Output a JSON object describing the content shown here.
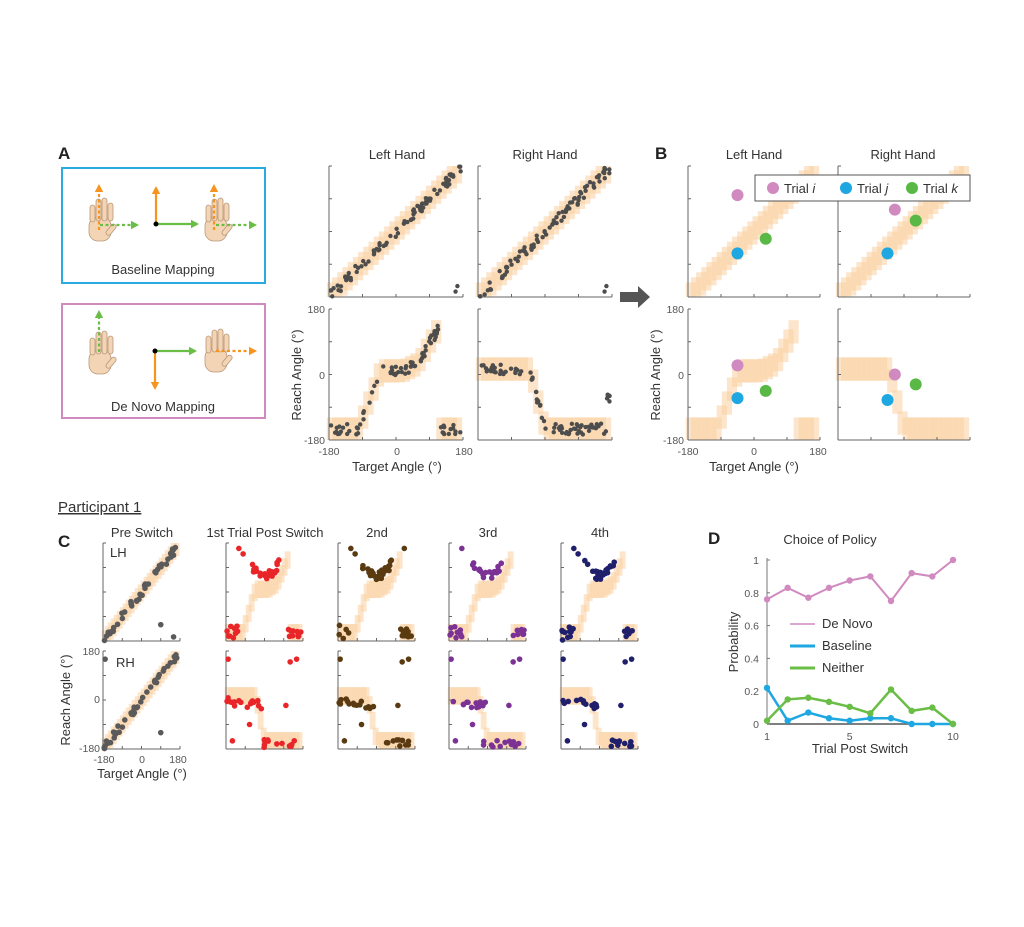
{
  "panel_a": {
    "letter": "A",
    "baseline_label": "Baseline Mapping",
    "denovo_label": "De Novo Mapping",
    "col_titles": [
      "Left Hand",
      "Right Hand"
    ],
    "ylabel": "Reach Angle (°)",
    "xlabel": "Target Angle (°)",
    "ticks": [
      "-180",
      "0",
      "180"
    ],
    "colors": {
      "baseline_box": "#29abe2",
      "denovo_box": "#d08ac0",
      "orange_arrow": "#f7941d",
      "green_arrow": "#6abd45",
      "hand": "#f3d5b5"
    }
  },
  "panel_b": {
    "letter": "B",
    "col_titles": [
      "Left Hand",
      "Right Hand"
    ],
    "ylabel": "Reach Angle (°)",
    "xlabel": "Target Angle (°)",
    "ticks": [
      "-180",
      "0",
      "180"
    ],
    "legend": [
      {
        "label": "Trial ",
        "var": "i",
        "color": "#d08ac0"
      },
      {
        "label": "Trial ",
        "var": "j",
        "color": "#1ea7e1"
      },
      {
        "label": "Trial ",
        "var": "k",
        "color": "#5ab946"
      }
    ],
    "trials": {
      "top_left": [
        {
          "t": -45,
          "r": 100,
          "k": 0
        },
        {
          "t": -45,
          "r": -60,
          "k": 1
        },
        {
          "t": 32,
          "r": -20,
          "k": 2
        }
      ],
      "top_right": [
        {
          "t": -25,
          "r": 60,
          "k": 0
        },
        {
          "t": -45,
          "r": -60,
          "k": 1
        },
        {
          "t": 32,
          "r": 30,
          "k": 2
        }
      ],
      "bottom_left": [
        {
          "t": -45,
          "r": 25,
          "k": 0
        },
        {
          "t": -45,
          "r": -65,
          "k": 1
        },
        {
          "t": 32,
          "r": -45,
          "k": 2
        }
      ],
      "bottom_right": [
        {
          "t": -25,
          "r": 0,
          "k": 0
        },
        {
          "t": -45,
          "r": -70,
          "k": 1
        },
        {
          "t": 32,
          "r": -27,
          "k": 2
        }
      ]
    }
  },
  "panel_c": {
    "letter": "C",
    "participant": "Participant 1",
    "col_titles": [
      "Pre Switch",
      "1st Trial Post Switch",
      "2nd",
      "3rd",
      "4th"
    ],
    "row_labels": [
      "LH",
      "RH"
    ],
    "ylabel": "Reach Angle (°)",
    "xlabel": "Target Angle (°)",
    "ticks": [
      "-180",
      "0",
      "180"
    ],
    "colors": [
      "#5a5a5a",
      "#e8262a",
      "#5a3a10",
      "#7b3294",
      "#1f1f6b"
    ]
  },
  "chart_data": {
    "type": "line",
    "letter": "D",
    "title": "Choice of Policy",
    "xlabel": "Trial Post Switch",
    "ylabel": "Probability",
    "x": [
      1,
      2,
      3,
      4,
      5,
      6,
      7,
      8,
      9,
      10
    ],
    "xticks": [
      "1",
      "5",
      "10"
    ],
    "yticks": [
      "0",
      "0.2",
      "0.4",
      "0.6",
      "0.8",
      "1"
    ],
    "xlim": [
      1,
      10
    ],
    "ylim": [
      0,
      1
    ],
    "legend_position": "center-left",
    "series": [
      {
        "name": "De Novo",
        "color": "#d08ac0",
        "values": [
          0.76,
          0.83,
          0.77,
          0.83,
          0.875,
          0.9,
          0.75,
          0.92,
          0.9,
          1.0
        ]
      },
      {
        "name": "Baseline",
        "color": "#1ea7e1",
        "values": [
          0.22,
          0.02,
          0.07,
          0.035,
          0.02,
          0.035,
          0.035,
          0.0,
          0.0,
          0.0
        ]
      },
      {
        "name": "Neither",
        "color": "#6abd45",
        "values": [
          0.02,
          0.15,
          0.16,
          0.135,
          0.105,
          0.065,
          0.21,
          0.08,
          0.1,
          0.0
        ]
      }
    ]
  }
}
